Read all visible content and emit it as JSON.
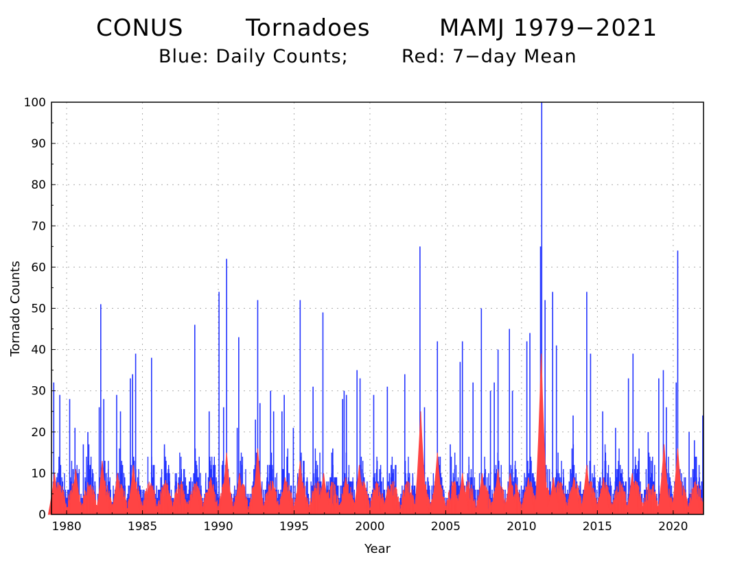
{
  "chart_data": {
    "type": "bar",
    "title_parts": [
      "CONUS",
      "Tornadoes",
      "MAMJ 1979−2021"
    ],
    "subtitle_parts": [
      "Blue: Daily Counts;",
      "Red: 7−day Mean"
    ],
    "xlabel": "Year",
    "ylabel": "Tornado Counts",
    "xlim": [
      1979,
      2022
    ],
    "ylim": [
      0,
      100
    ],
    "x_ticks": [
      1980,
      1985,
      1990,
      1995,
      2000,
      2005,
      2010,
      2015,
      2020
    ],
    "y_ticks": [
      0,
      10,
      20,
      30,
      40,
      50,
      60,
      70,
      80,
      90,
      100
    ],
    "grid": true,
    "season_months": [
      "Mar",
      "Apr",
      "May",
      "Jun"
    ],
    "series": [
      {
        "color": "#2233ff",
        "peaks": [
          {
            "x": 1979.15,
            "y": 32
          },
          {
            "x": 1979.55,
            "y": 29
          },
          {
            "x": 1980.2,
            "y": 28
          },
          {
            "x": 1980.55,
            "y": 21
          },
          {
            "x": 1981.1,
            "y": 17
          },
          {
            "x": 1981.4,
            "y": 20
          },
          {
            "x": 1982.15,
            "y": 26
          },
          {
            "x": 1982.25,
            "y": 51
          },
          {
            "x": 1982.45,
            "y": 28
          },
          {
            "x": 1983.3,
            "y": 29
          },
          {
            "x": 1983.55,
            "y": 25
          },
          {
            "x": 1984.2,
            "y": 33
          },
          {
            "x": 1984.35,
            "y": 34
          },
          {
            "x": 1984.55,
            "y": 39
          },
          {
            "x": 1985.6,
            "y": 38
          },
          {
            "x": 1986.45,
            "y": 17
          },
          {
            "x": 1987.4,
            "y": 9
          },
          {
            "x": 1988.45,
            "y": 46
          },
          {
            "x": 1989.4,
            "y": 25
          },
          {
            "x": 1990.05,
            "y": 54
          },
          {
            "x": 1990.35,
            "y": 26
          },
          {
            "x": 1990.55,
            "y": 62
          },
          {
            "x": 1991.25,
            "y": 21
          },
          {
            "x": 1991.35,
            "y": 43
          },
          {
            "x": 1992.45,
            "y": 23
          },
          {
            "x": 1992.6,
            "y": 52
          },
          {
            "x": 1992.75,
            "y": 27
          },
          {
            "x": 1993.45,
            "y": 30
          },
          {
            "x": 1993.65,
            "y": 25
          },
          {
            "x": 1994.2,
            "y": 25
          },
          {
            "x": 1994.35,
            "y": 29
          },
          {
            "x": 1994.95,
            "y": 21
          },
          {
            "x": 1995.4,
            "y": 52
          },
          {
            "x": 1996.25,
            "y": 31
          },
          {
            "x": 1996.9,
            "y": 49
          },
          {
            "x": 1997.55,
            "y": 16
          },
          {
            "x": 1998.2,
            "y": 28
          },
          {
            "x": 1998.3,
            "y": 30
          },
          {
            "x": 1998.45,
            "y": 29
          },
          {
            "x": 1999.15,
            "y": 35
          },
          {
            "x": 1999.35,
            "y": 33
          },
          {
            "x": 2000.25,
            "y": 29
          },
          {
            "x": 2001.15,
            "y": 31
          },
          {
            "x": 2001.4,
            "y": 12
          },
          {
            "x": 2002.3,
            "y": 34
          },
          {
            "x": 2003.3,
            "y": 65
          },
          {
            "x": 2003.6,
            "y": 26
          },
          {
            "x": 2004.45,
            "y": 42
          },
          {
            "x": 2005.3,
            "y": 17
          },
          {
            "x": 2005.95,
            "y": 37
          },
          {
            "x": 2006.1,
            "y": 42
          },
          {
            "x": 2006.8,
            "y": 32
          },
          {
            "x": 2007.35,
            "y": 50
          },
          {
            "x": 2007.95,
            "y": 30
          },
          {
            "x": 2008.2,
            "y": 32
          },
          {
            "x": 2008.45,
            "y": 40
          },
          {
            "x": 2009.2,
            "y": 45
          },
          {
            "x": 2009.4,
            "y": 30
          },
          {
            "x": 2010.35,
            "y": 42
          },
          {
            "x": 2010.55,
            "y": 44
          },
          {
            "x": 2011.25,
            "y": 65
          },
          {
            "x": 2011.33,
            "y": 100
          },
          {
            "x": 2011.55,
            "y": 52
          },
          {
            "x": 2012.05,
            "y": 54
          },
          {
            "x": 2012.3,
            "y": 41
          },
          {
            "x": 2013.4,
            "y": 24
          },
          {
            "x": 2014.3,
            "y": 54
          },
          {
            "x": 2014.55,
            "y": 39
          },
          {
            "x": 2015.35,
            "y": 25
          },
          {
            "x": 2016.2,
            "y": 21
          },
          {
            "x": 2017.05,
            "y": 33
          },
          {
            "x": 2017.35,
            "y": 39
          },
          {
            "x": 2017.75,
            "y": 16
          },
          {
            "x": 2018.35,
            "y": 20
          },
          {
            "x": 2019.05,
            "y": 33
          },
          {
            "x": 2019.35,
            "y": 35
          },
          {
            "x": 2019.55,
            "y": 26
          },
          {
            "x": 2020.2,
            "y": 32
          },
          {
            "x": 2020.3,
            "y": 64
          },
          {
            "x": 2021.05,
            "y": 20
          },
          {
            "x": 2021.4,
            "y": 18
          },
          {
            "x": 2021.95,
            "y": 24
          }
        ]
      },
      {
        "color": "#ff4444",
        "peaks": [
          {
            "x": 1979.2,
            "y": 10
          },
          {
            "x": 1980.6,
            "y": 11
          },
          {
            "x": 1982.35,
            "y": 13
          },
          {
            "x": 1983.35,
            "y": 10
          },
          {
            "x": 1984.4,
            "y": 12
          },
          {
            "x": 1985.6,
            "y": 7
          },
          {
            "x": 1988.45,
            "y": 7
          },
          {
            "x": 1989.5,
            "y": 9
          },
          {
            "x": 1990.55,
            "y": 15
          },
          {
            "x": 1991.4,
            "y": 10
          },
          {
            "x": 1992.6,
            "y": 16
          },
          {
            "x": 1993.6,
            "y": 8
          },
          {
            "x": 1994.4,
            "y": 9
          },
          {
            "x": 1995.4,
            "y": 13
          },
          {
            "x": 1996.95,
            "y": 10
          },
          {
            "x": 1998.4,
            "y": 9
          },
          {
            "x": 1999.3,
            "y": 12
          },
          {
            "x": 2000.3,
            "y": 6
          },
          {
            "x": 2001.2,
            "y": 7
          },
          {
            "x": 2003.35,
            "y": 25
          },
          {
            "x": 2004.45,
            "y": 15
          },
          {
            "x": 2006.1,
            "y": 10
          },
          {
            "x": 2007.4,
            "y": 10
          },
          {
            "x": 2008.45,
            "y": 11
          },
          {
            "x": 2009.25,
            "y": 10
          },
          {
            "x": 2010.45,
            "y": 9
          },
          {
            "x": 2011.3,
            "y": 39
          },
          {
            "x": 2012.1,
            "y": 9
          },
          {
            "x": 2013.45,
            "y": 9
          },
          {
            "x": 2014.3,
            "y": 12
          },
          {
            "x": 2015.4,
            "y": 9
          },
          {
            "x": 2017.3,
            "y": 10
          },
          {
            "x": 2019.4,
            "y": 17
          },
          {
            "x": 2020.3,
            "y": 16
          },
          {
            "x": 2021.4,
            "y": 7
          }
        ]
      }
    ]
  }
}
